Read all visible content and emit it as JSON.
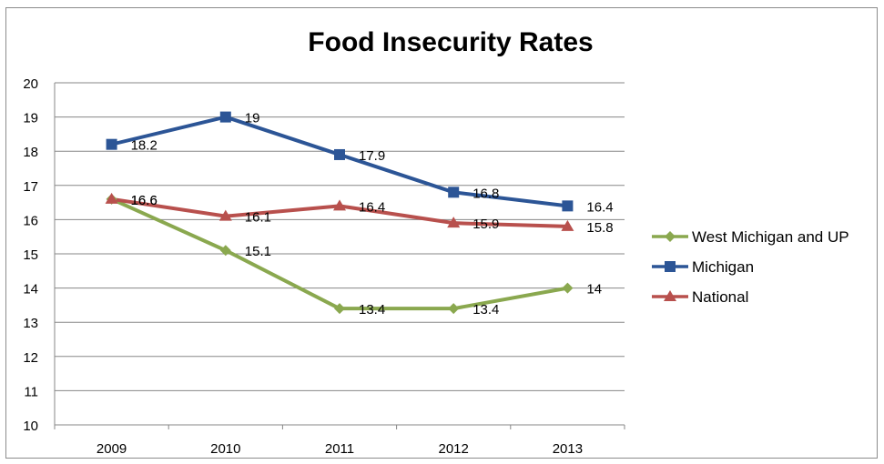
{
  "chart_data": {
    "type": "line",
    "title": "Food Insecurity Rates",
    "xlabel": "",
    "ylabel": "",
    "categories": [
      "2009",
      "2010",
      "2011",
      "2012",
      "2013"
    ],
    "ylim": [
      10,
      20
    ],
    "yticks": [
      10,
      11,
      12,
      13,
      14,
      15,
      16,
      17,
      18,
      19,
      20
    ],
    "grid": true,
    "legend_position": "right",
    "series": [
      {
        "name": "West Michigan and UP",
        "values": [
          16.6,
          15.1,
          13.4,
          13.4,
          14
        ],
        "labels": [
          "16.6",
          "15.1",
          "13.4",
          "13.4",
          "14"
        ],
        "color": "#8aa84f",
        "marker": "diamond"
      },
      {
        "name": "Michigan",
        "values": [
          18.2,
          19,
          17.9,
          16.8,
          16.4
        ],
        "labels": [
          "18.2",
          "19",
          "17.9",
          "16.8",
          "16.4"
        ],
        "color": "#2c5596",
        "marker": "square"
      },
      {
        "name": "National",
        "values": [
          16.6,
          16.1,
          16.4,
          15.9,
          15.8
        ],
        "labels": [
          "16.6",
          "16.1",
          "16.4",
          "15.9",
          "15.8"
        ],
        "color": "#b8504d",
        "marker": "triangle"
      }
    ]
  }
}
